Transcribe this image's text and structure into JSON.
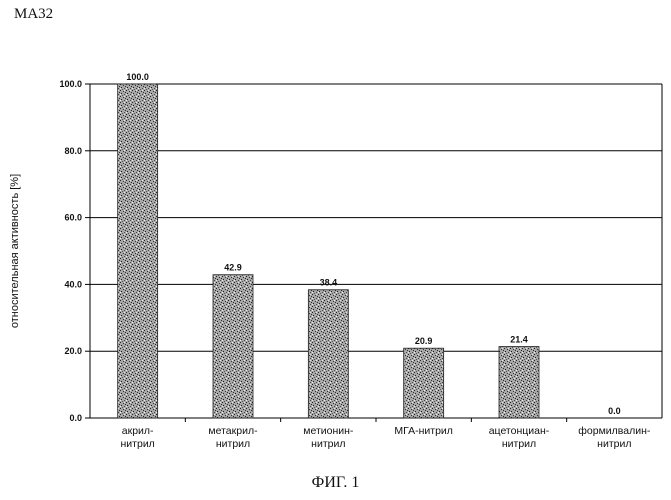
{
  "header": {
    "label": "МА32"
  },
  "caption": "ФИГ. 1",
  "colors": {
    "bar_fill": "#9a9a9a",
    "bar_dark": "#2a2a2a",
    "gridline": "#000000",
    "text": "#111111"
  },
  "chart_data": {
    "type": "bar",
    "title": "",
    "ylabel": "относительная активность [%]",
    "xlabel": "",
    "ylim": [
      0,
      100
    ],
    "yticks": [
      "0.0",
      "20.0",
      "40.0",
      "60.0",
      "80.0",
      "100.0"
    ],
    "grid": true,
    "categories": [
      [
        "акрил-",
        "нитрил"
      ],
      [
        "метакрил-",
        "нитрил"
      ],
      [
        "метионин-",
        "нитрил"
      ],
      [
        "МГА-нитрил"
      ],
      [
        "ацетонциан-",
        "нитрил"
      ],
      [
        "формилвалин-",
        "нитрил"
      ]
    ],
    "values": [
      100.0,
      42.9,
      38.4,
      20.9,
      21.4,
      0.0
    ],
    "value_labels": [
      "100.0",
      "42.9",
      "38.4",
      "20.9",
      "21.4",
      "0.0"
    ]
  }
}
